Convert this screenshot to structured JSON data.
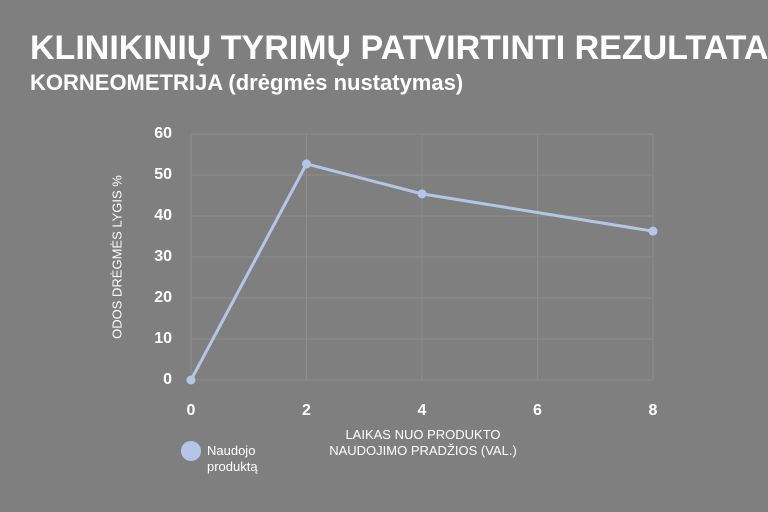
{
  "chart_data": {
    "type": "line",
    "title": "KLINIKINIŲ TYRIMŲ PATVIRTINTI REZULTATAI",
    "subtitle": "KORNEOMETRIJA (drėgmės nustatymas)",
    "x_label": "LAIKAS NUO PRODUKTO NAUDOJIMO PRADŽIOS (VAL.)",
    "y_label": "ODOS DRĖGMĖS LYGIS %",
    "x": [
      0,
      2,
      4,
      8
    ],
    "series": [
      {
        "name": "Naudojo produktą",
        "color": "#b4c6e7",
        "values": [
          0,
          52.7,
          45.4,
          36.3
        ]
      }
    ],
    "xlim": [
      0,
      8
    ],
    "xticks": [
      0,
      2,
      4,
      6,
      8
    ],
    "ylim": [
      0,
      60
    ],
    "yticks": [
      0,
      10,
      20,
      30,
      40,
      50,
      60
    ],
    "grid": true,
    "legend": "bottom-left"
  }
}
